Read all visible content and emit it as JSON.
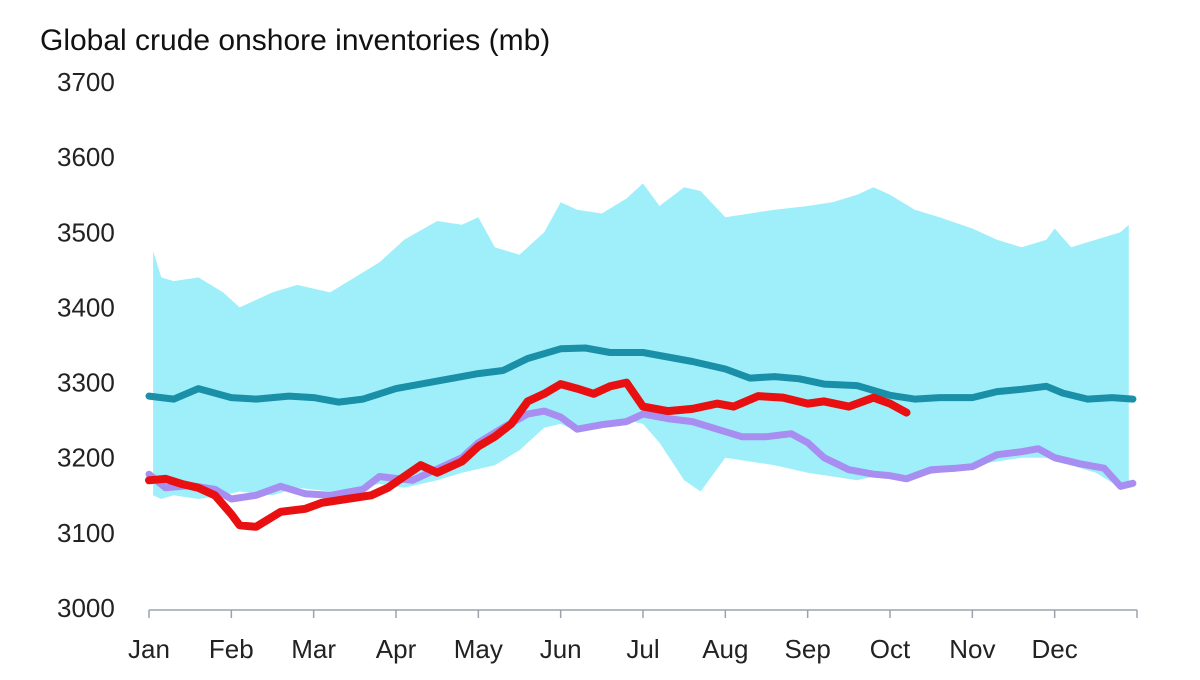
{
  "chart_data": {
    "type": "line",
    "title": "Global crude onshore inventories (mb)",
    "xlabel": "",
    "ylabel": "",
    "ylim": [
      3000,
      3700
    ],
    "yticks": [
      3000,
      3100,
      3200,
      3300,
      3400,
      3500,
      3600,
      3700
    ],
    "xlim": [
      0,
      12
    ],
    "xticks": [
      {
        "label": "Jan",
        "x": 0
      },
      {
        "label": "Feb",
        "x": 1
      },
      {
        "label": "Mar",
        "x": 2
      },
      {
        "label": "Apr",
        "x": 3
      },
      {
        "label": "May",
        "x": 4
      },
      {
        "label": "Jun",
        "x": 5
      },
      {
        "label": "Jul",
        "x": 6
      },
      {
        "label": "Aug",
        "x": 7
      },
      {
        "label": "Sep",
        "x": 8
      },
      {
        "label": "Oct",
        "x": 9
      },
      {
        "label": "Nov",
        "x": 10
      },
      {
        "label": "Dec",
        "x": 11
      }
    ],
    "grid": false,
    "legend": false,
    "x_units": "months elapsed since Jan 1",
    "band": {
      "name": "range",
      "color": "#9eeffa",
      "x": [
        0.05,
        0.15,
        0.3,
        0.6,
        0.9,
        1.1,
        1.5,
        1.8,
        2.2,
        2.5,
        2.8,
        3.1,
        3.5,
        3.8,
        4.0,
        4.2,
        4.5,
        4.8,
        5.0,
        5.2,
        5.5,
        5.8,
        6.0,
        6.2,
        6.5,
        6.7,
        7.0,
        7.3,
        7.6,
        8.0,
        8.3,
        8.6,
        8.8,
        9.0,
        9.3,
        9.6,
        10.0,
        10.3,
        10.6,
        10.9,
        11.0,
        11.2,
        11.5,
        11.8,
        11.9
      ],
      "upper": [
        3475,
        3440,
        3435,
        3440,
        3420,
        3400,
        3420,
        3430,
        3420,
        3440,
        3460,
        3490,
        3515,
        3510,
        3520,
        3480,
        3470,
        3500,
        3540,
        3530,
        3525,
        3545,
        3565,
        3535,
        3560,
        3555,
        3520,
        3525,
        3530,
        3535,
        3540,
        3550,
        3560,
        3550,
        3530,
        3520,
        3505,
        3490,
        3480,
        3490,
        3505,
        3480,
        3490,
        3500,
        3510
      ],
      "lower": [
        3150,
        3145,
        3150,
        3145,
        3150,
        3155,
        3150,
        3160,
        3155,
        3160,
        3165,
        3160,
        3170,
        3180,
        3185,
        3190,
        3210,
        3240,
        3245,
        3235,
        3240,
        3250,
        3245,
        3220,
        3170,
        3155,
        3200,
        3195,
        3190,
        3180,
        3175,
        3170,
        3175,
        3180,
        3175,
        3180,
        3190,
        3195,
        3200,
        3200,
        3195,
        3190,
        3180,
        3160,
        3160
      ]
    },
    "series": [
      {
        "name": "teal",
        "color": "#1a8fa8",
        "x": [
          0.0,
          0.3,
          0.6,
          1.0,
          1.3,
          1.7,
          2.0,
          2.3,
          2.6,
          3.0,
          3.5,
          4.0,
          4.3,
          4.6,
          5.0,
          5.3,
          5.6,
          6.0,
          6.3,
          6.6,
          7.0,
          7.3,
          7.6,
          7.9,
          8.2,
          8.6,
          9.0,
          9.3,
          9.6,
          10.0,
          10.3,
          10.6,
          10.9,
          11.1,
          11.4,
          11.7,
          11.95
        ],
        "values": [
          3282,
          3278,
          3292,
          3280,
          3278,
          3282,
          3280,
          3274,
          3278,
          3292,
          3302,
          3312,
          3316,
          3332,
          3345,
          3346,
          3340,
          3340,
          3334,
          3328,
          3318,
          3306,
          3308,
          3305,
          3298,
          3296,
          3283,
          3278,
          3280,
          3280,
          3288,
          3291,
          3295,
          3286,
          3278,
          3280,
          3278
        ]
      },
      {
        "name": "purple",
        "color": "#a88ef0",
        "x": [
          0.0,
          0.2,
          0.5,
          0.8,
          1.0,
          1.3,
          1.6,
          1.9,
          2.2,
          2.6,
          2.8,
          3.2,
          3.5,
          3.8,
          4.0,
          4.3,
          4.6,
          4.8,
          5.0,
          5.2,
          5.5,
          5.8,
          6.0,
          6.3,
          6.6,
          6.9,
          7.2,
          7.5,
          7.8,
          8.0,
          8.2,
          8.5,
          8.8,
          9.0,
          9.2,
          9.5,
          9.8,
          10.0,
          10.3,
          10.6,
          10.8,
          11.0,
          11.3,
          11.6,
          11.8,
          11.95
        ],
        "values": [
          3178,
          3160,
          3163,
          3158,
          3145,
          3150,
          3162,
          3152,
          3150,
          3158,
          3175,
          3170,
          3185,
          3200,
          3220,
          3240,
          3258,
          3262,
          3254,
          3238,
          3244,
          3248,
          3258,
          3252,
          3248,
          3238,
          3228,
          3228,
          3232,
          3220,
          3200,
          3184,
          3178,
          3176,
          3172,
          3184,
          3186,
          3188,
          3204,
          3208,
          3212,
          3200,
          3192,
          3186,
          3162,
          3166
        ]
      },
      {
        "name": "red",
        "color": "#e81010",
        "x": [
          0.0,
          0.2,
          0.4,
          0.6,
          0.8,
          1.0,
          1.1,
          1.3,
          1.6,
          1.9,
          2.1,
          2.4,
          2.7,
          2.9,
          3.1,
          3.3,
          3.5,
          3.8,
          4.0,
          4.2,
          4.4,
          4.6,
          4.8,
          5.0,
          5.2,
          5.4,
          5.6,
          5.8,
          6.0,
          6.3,
          6.6,
          6.9,
          7.1,
          7.4,
          7.7,
          8.0,
          8.2,
          8.5,
          8.8,
          9.0,
          9.2
        ],
        "values": [
          3170,
          3172,
          3165,
          3160,
          3150,
          3125,
          3110,
          3108,
          3128,
          3132,
          3140,
          3145,
          3150,
          3160,
          3175,
          3190,
          3180,
          3195,
          3215,
          3228,
          3245,
          3275,
          3285,
          3298,
          3292,
          3285,
          3295,
          3300,
          3268,
          3262,
          3265,
          3272,
          3268,
          3282,
          3280,
          3272,
          3275,
          3268,
          3280,
          3272,
          3260
        ]
      }
    ]
  }
}
